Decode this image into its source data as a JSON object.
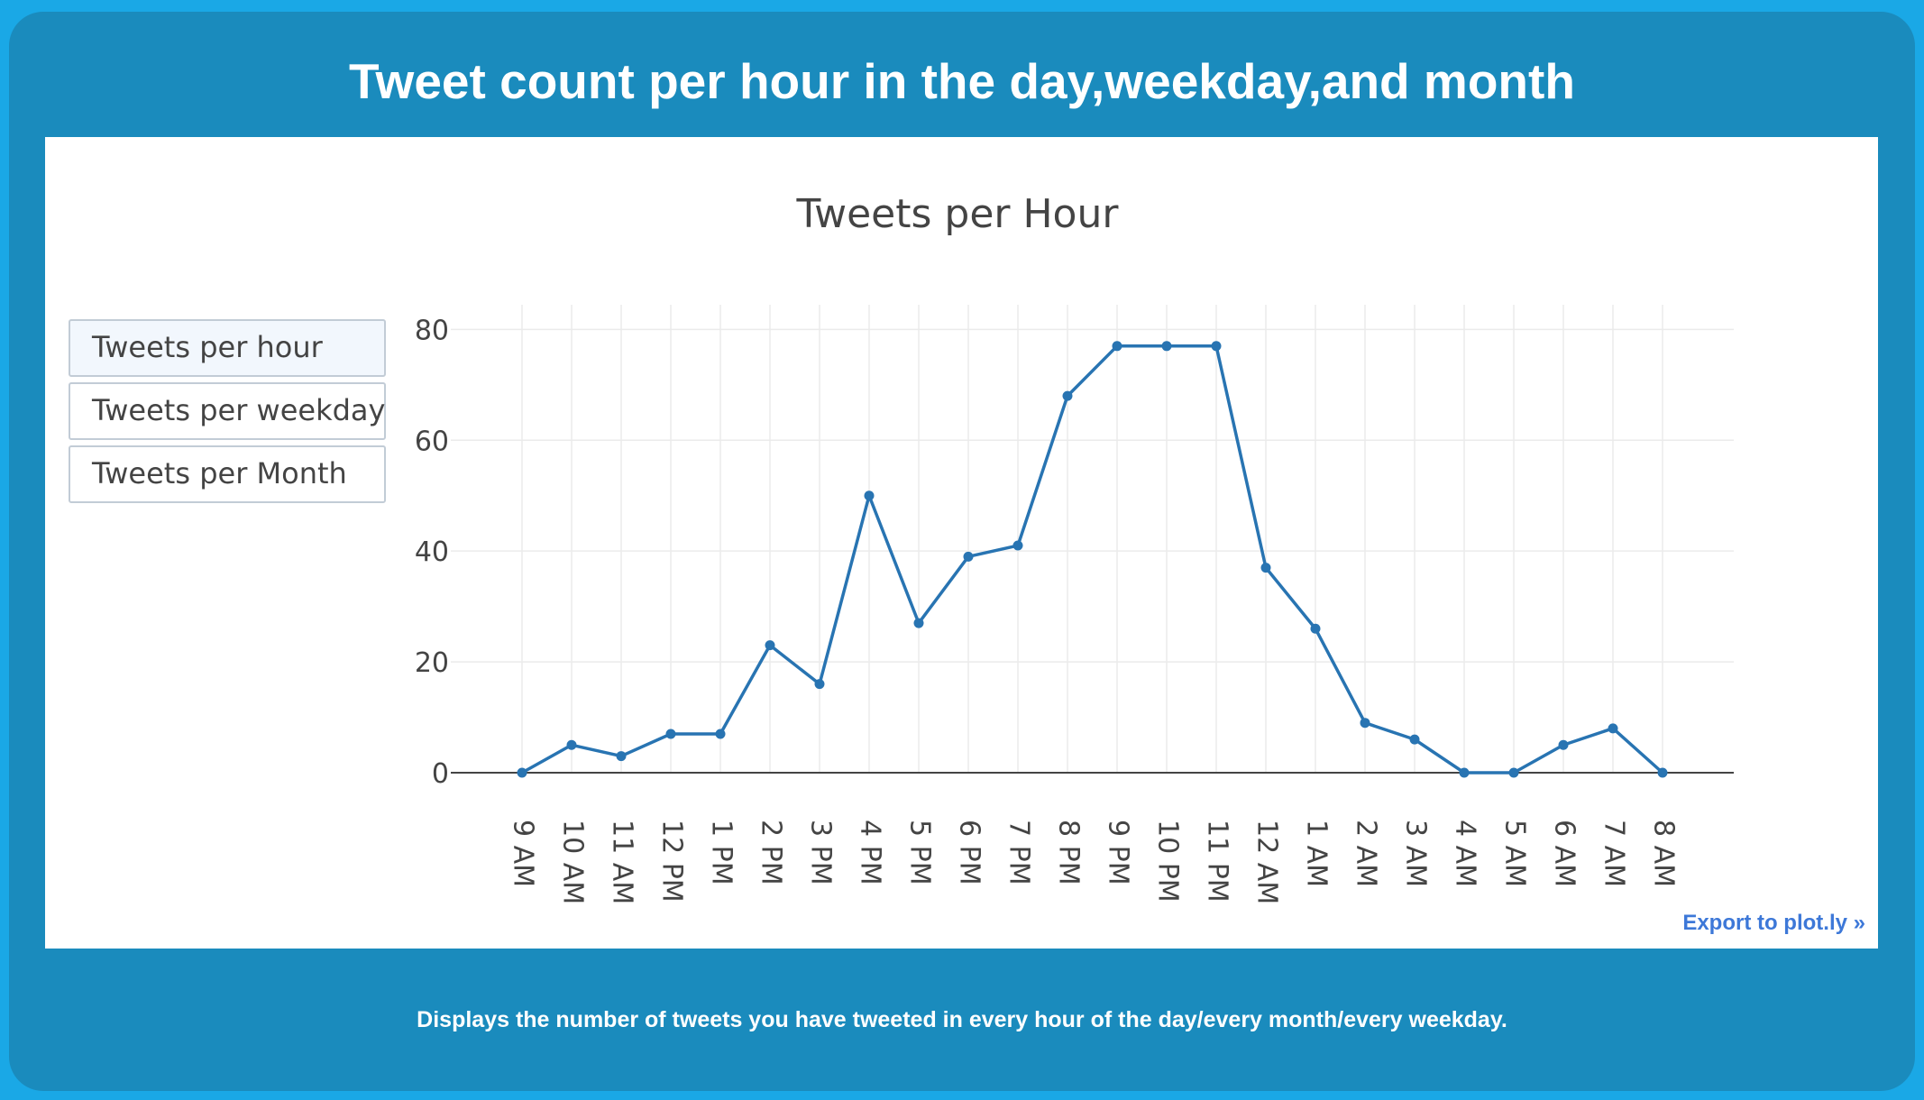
{
  "page": {
    "title": "Tweet count per hour in the day,weekday,and month",
    "footer": "Displays the number of tweets you have tweeted in every hour of the day/every month/every weekday.",
    "export_label": "Export to plot.ly »"
  },
  "menu": {
    "buttons": [
      {
        "label": "Tweets per hour",
        "active": true
      },
      {
        "label": "Tweets per weekday",
        "active": false
      },
      {
        "label": "Tweets per Month",
        "active": false
      }
    ]
  },
  "colors": {
    "background": "#1aa8e6",
    "frame": "#1a8bbd",
    "line": "#2874b2",
    "link": "#3d78d8"
  },
  "chart_data": {
    "type": "line",
    "title": "Tweets per Hour",
    "xlabel": "",
    "ylabel": "",
    "categories": [
      "9 AM",
      "10 AM",
      "11 AM",
      "12 PM",
      "1 PM",
      "2 PM",
      "3 PM",
      "4 PM",
      "5 PM",
      "6 PM",
      "7 PM",
      "8 PM",
      "9 PM",
      "10 PM",
      "11 PM",
      "12 AM",
      "1 AM",
      "2 AM",
      "3 AM",
      "4 AM",
      "5 AM",
      "6 AM",
      "7 AM",
      "8 AM"
    ],
    "values": [
      0,
      5,
      3,
      7,
      7,
      23,
      16,
      50,
      27,
      39,
      41,
      68,
      77,
      77,
      77,
      37,
      26,
      9,
      6,
      0,
      0,
      5,
      8,
      0
    ],
    "yticks": [
      0,
      20,
      40,
      60,
      80
    ],
    "ylim": [
      0,
      82.5
    ],
    "grid": true,
    "markers": true
  }
}
